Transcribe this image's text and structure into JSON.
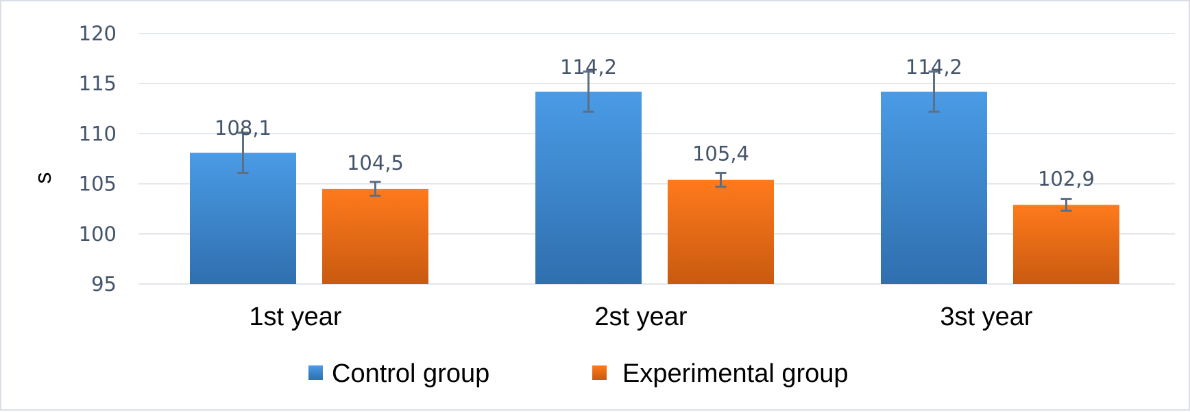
{
  "chart_data": {
    "type": "bar",
    "title": "",
    "xlabel": "",
    "ylabel": "s",
    "ylim": [
      95,
      120
    ],
    "yticks": [
      95,
      100,
      105,
      110,
      115,
      120
    ],
    "grid": true,
    "legend_position": "bottom-center",
    "categories": [
      "1st year",
      "2st year",
      "3st year"
    ],
    "series": [
      {
        "name": "Control group",
        "color": "#4a9be6",
        "color_dark": "#2f6fae",
        "values": [
          108.1,
          114.2,
          114.2
        ],
        "labels": [
          "108,1",
          "114,2",
          "114,2"
        ],
        "error": [
          2.0,
          2.0,
          2.0
        ]
      },
      {
        "name": "Experimental group",
        "color": "#ff7a1c",
        "color_dark": "#c95a10",
        "values": [
          104.5,
          105.4,
          102.9
        ],
        "labels": [
          "104,5",
          "105,4",
          "102,9"
        ],
        "error": [
          0.7,
          0.7,
          0.6
        ]
      }
    ]
  }
}
